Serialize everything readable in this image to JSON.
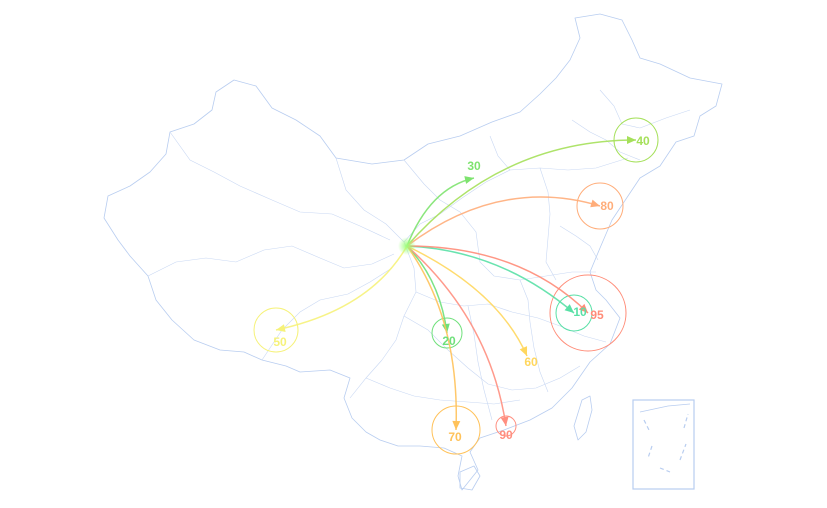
{
  "map": {
    "origin_name": "",
    "flows": [
      {
        "value": "30",
        "color": "#7ee36f"
      },
      {
        "value": "40",
        "color": "#a5e05a"
      },
      {
        "value": "80",
        "color": "#ffad7a"
      },
      {
        "value": "10",
        "color": "#59e0a6"
      },
      {
        "value": "95",
        "color": "#ff8c78"
      },
      {
        "value": "50",
        "color": "#f6f27a"
      },
      {
        "value": "20",
        "color": "#6ee07a"
      },
      {
        "value": "60",
        "color": "#ffd75e"
      },
      {
        "value": "70",
        "color": "#ffc25a"
      },
      {
        "value": "90",
        "color": "#ff8f80"
      }
    ]
  }
}
